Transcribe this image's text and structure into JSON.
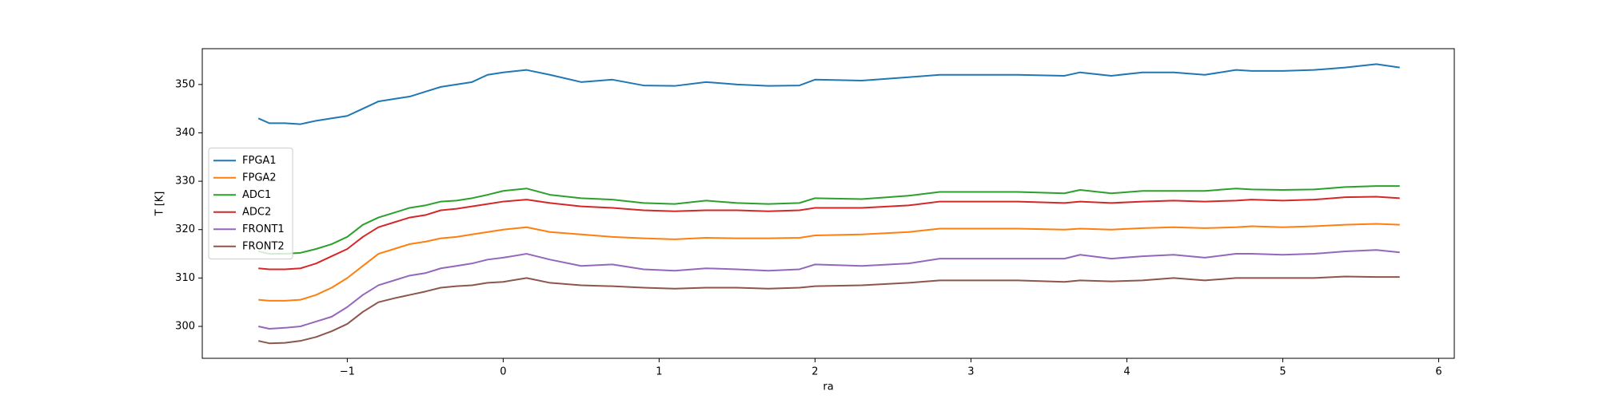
{
  "chart_data": {
    "type": "line",
    "x_label": "ra",
    "y_label": "T [K]",
    "x": [
      -1.57,
      -1.5,
      -1.4,
      -1.3,
      -1.2,
      -1.1,
      -1.0,
      -0.9,
      -0.8,
      -0.7,
      -0.6,
      -0.5,
      -0.4,
      -0.3,
      -0.2,
      -0.1,
      0,
      0.15,
      0.3,
      0.5,
      0.7,
      0.9,
      1.1,
      1.3,
      1.5,
      1.7,
      1.9,
      2.0,
      2.3,
      2.6,
      2.8,
      3.0,
      3.3,
      3.6,
      3.7,
      3.9,
      4.1,
      4.3,
      4.5,
      4.7,
      4.8,
      5.0,
      5.2,
      5.4,
      5.6,
      5.75
    ],
    "series": [
      {
        "name": "FPGA1",
        "color": "#1f77b4",
        "values": [
          343,
          342,
          342,
          341.8,
          342.5,
          343,
          343.5,
          345,
          346.5,
          347,
          347.5,
          348.5,
          349.5,
          350,
          350.5,
          352,
          352.5,
          353,
          352,
          350.5,
          351,
          349.8,
          349.7,
          350.5,
          350,
          349.7,
          349.8,
          351,
          350.8,
          351.5,
          352,
          352,
          352,
          351.8,
          352.5,
          351.8,
          352.5,
          352.5,
          352,
          353,
          352.8,
          352.8,
          353,
          353.5,
          354.2,
          353.5
        ]
      },
      {
        "name": "FPGA2",
        "color": "#ff7f0e",
        "values": [
          305.5,
          305.3,
          305.3,
          305.5,
          306.5,
          308,
          310,
          312.5,
          315,
          316,
          317,
          317.5,
          318.2,
          318.5,
          319,
          319.5,
          320,
          320.5,
          319.5,
          319,
          318.5,
          318.2,
          318,
          318.3,
          318.2,
          318.2,
          318.3,
          318.8,
          319,
          319.5,
          320.2,
          320.2,
          320.2,
          320,
          320.2,
          320,
          320.3,
          320.5,
          320.3,
          320.5,
          320.7,
          320.5,
          320.7,
          321,
          321.2,
          321
        ]
      },
      {
        "name": "ADC1",
        "color": "#2ca02c",
        "values": [
          315.5,
          315,
          315,
          315.2,
          316,
          317,
          318.5,
          321,
          322.5,
          323.5,
          324.5,
          325,
          325.8,
          326,
          326.5,
          327.2,
          328,
          328.5,
          327.2,
          326.5,
          326.2,
          325.5,
          325.3,
          326,
          325.5,
          325.3,
          325.5,
          326.5,
          326.3,
          327,
          327.8,
          327.8,
          327.8,
          327.5,
          328.2,
          327.5,
          328,
          328,
          328,
          328.5,
          328.3,
          328.2,
          328.3,
          328.8,
          329,
          329
        ]
      },
      {
        "name": "ADC2",
        "color": "#d62728",
        "values": [
          312,
          311.8,
          311.8,
          312,
          313,
          314.5,
          316,
          318.5,
          320.5,
          321.5,
          322.5,
          323,
          324,
          324.3,
          324.8,
          325.3,
          325.8,
          326.2,
          325.5,
          324.8,
          324.5,
          324,
          323.8,
          324,
          324,
          323.8,
          324,
          324.5,
          324.5,
          325,
          325.8,
          325.8,
          325.8,
          325.5,
          325.8,
          325.5,
          325.8,
          326,
          325.8,
          326,
          326.2,
          326,
          326.2,
          326.7,
          326.8,
          326.5
        ]
      },
      {
        "name": "FRONT1",
        "color": "#9467bd",
        "values": [
          300,
          299.5,
          299.7,
          300,
          301,
          302,
          304,
          306.5,
          308.5,
          309.5,
          310.5,
          311,
          312,
          312.5,
          313,
          313.8,
          314.2,
          315,
          313.8,
          312.5,
          312.8,
          311.8,
          311.5,
          312,
          311.8,
          311.5,
          311.8,
          312.8,
          312.5,
          313,
          314,
          314,
          314,
          314,
          314.8,
          314,
          314.5,
          314.8,
          314.2,
          315,
          315,
          314.8,
          315,
          315.5,
          315.8,
          315.3
        ]
      },
      {
        "name": "FRONT2",
        "color": "#8c564b",
        "values": [
          297,
          296.5,
          296.6,
          297,
          297.8,
          299,
          300.5,
          303,
          305,
          305.8,
          306.5,
          307.2,
          308,
          308.3,
          308.5,
          309,
          309.2,
          310,
          309,
          308.5,
          308.3,
          308,
          307.8,
          308,
          308,
          307.8,
          308,
          308.3,
          308.5,
          309,
          309.5,
          309.5,
          309.5,
          309.2,
          309.5,
          309.3,
          309.5,
          310,
          309.5,
          310,
          310,
          310,
          310,
          310.3,
          310.2,
          310.2
        ]
      }
    ],
    "xlim": [
      -1.93,
      6.1
    ],
    "xticks": [
      {
        "value": -1,
        "label": "−1"
      },
      0,
      1,
      2,
      3,
      4,
      5,
      6
    ],
    "ylim": [
      293.4,
      357.4
    ],
    "yticks": [
      300,
      310,
      320,
      330,
      340,
      350
    ],
    "legend": "center left"
  }
}
